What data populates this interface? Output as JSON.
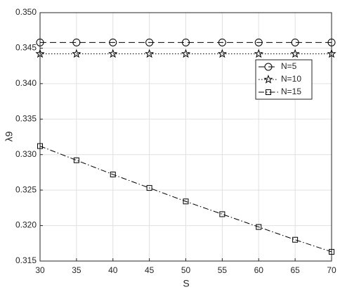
{
  "chart_data": {
    "type": "line",
    "xlabel": "S",
    "ylabel": "λ9",
    "x": [
      30,
      35,
      40,
      45,
      50,
      55,
      60,
      65,
      70
    ],
    "series": [
      {
        "name": "N=5",
        "color": "#000000",
        "linestyle": "dashed",
        "marker": "circle",
        "values": [
          0.3458,
          0.3458,
          0.3458,
          0.3458,
          0.3458,
          0.3458,
          0.3458,
          0.3458,
          0.3458
        ]
      },
      {
        "name": "N=10",
        "color": "#000000",
        "linestyle": "dotted",
        "marker": "star",
        "values": [
          0.3442,
          0.3442,
          0.3442,
          0.3442,
          0.3442,
          0.3442,
          0.3442,
          0.3442,
          0.3442
        ]
      },
      {
        "name": "N=15",
        "color": "#000000",
        "linestyle": "dashdot",
        "marker": "square",
        "values": [
          0.3312,
          0.3292,
          0.3272,
          0.3253,
          0.3234,
          0.3216,
          0.3198,
          0.318,
          0.3163
        ]
      }
    ],
    "xlim": [
      30,
      70
    ],
    "xticks": [
      30,
      35,
      40,
      45,
      50,
      55,
      60,
      65,
      70
    ],
    "ylim": [
      0.315,
      0.35
    ],
    "yticks": [
      0.315,
      {
        "value": 0.32,
        "label": "0.320"
      },
      0.325,
      {
        "value": 0.33,
        "label": "0.330"
      },
      0.335,
      {
        "value": 0.34,
        "label": "0.340"
      },
      0.345,
      {
        "value": 0.35,
        "label": "0.350"
      }
    ],
    "grid": true,
    "legend": "northeast"
  }
}
